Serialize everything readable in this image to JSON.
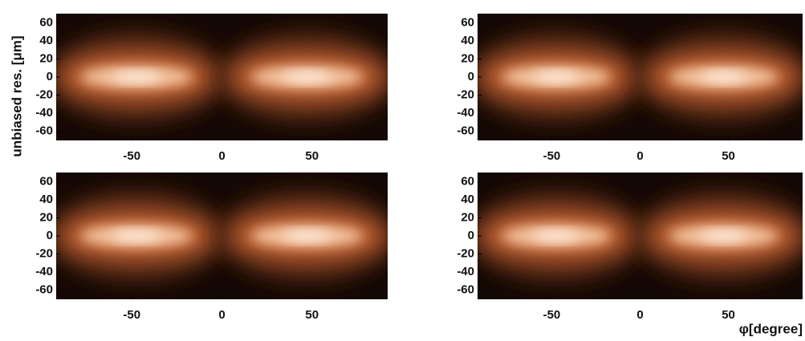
{
  "chart_data": [
    {
      "type": "heatmap",
      "ylabel": "unbiased res. [μm]",
      "xlim": [
        -92,
        92
      ],
      "ylim": [
        -70,
        70
      ],
      "xticks": [
        -50,
        0,
        50
      ],
      "yticks": [
        60,
        40,
        20,
        0,
        -20,
        -40,
        -60
      ]
    },
    {
      "type": "heatmap",
      "xlim": [
        -92,
        92
      ],
      "ylim": [
        -70,
        70
      ],
      "xticks": [
        -50,
        0,
        50
      ],
      "yticks": [
        60,
        40,
        20,
        0,
        -20,
        -40,
        -60
      ]
    },
    {
      "type": "heatmap",
      "xlim": [
        -92,
        92
      ],
      "ylim": [
        -70,
        70
      ],
      "xticks": [
        -50,
        0,
        50
      ],
      "yticks": [
        60,
        40,
        20,
        0,
        -20,
        -40,
        -60
      ]
    },
    {
      "type": "heatmap",
      "xlabel": "φ[degree]",
      "xlim": [
        -92,
        92
      ],
      "ylim": [
        -70,
        70
      ],
      "xticks": [
        -50,
        0,
        50
      ],
      "yticks": [
        60,
        40,
        20,
        0,
        -20,
        -40,
        -60
      ]
    }
  ]
}
